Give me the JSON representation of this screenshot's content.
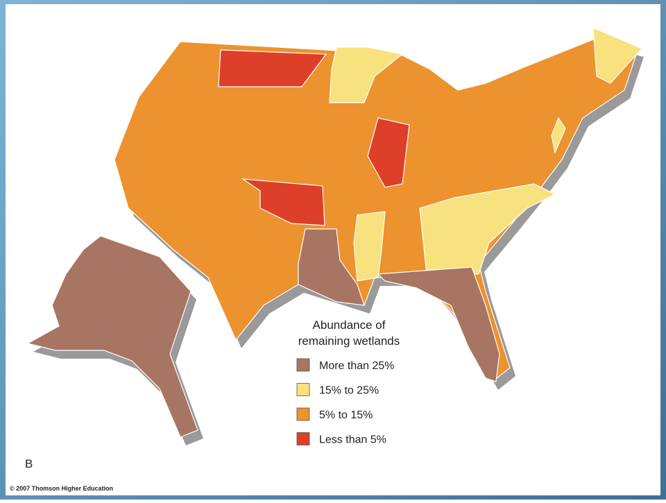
{
  "caption": "B",
  "copyright": "© 2007 Thomson Higher Education",
  "legend": {
    "title": [
      "Abundance of",
      "remaining wetlands"
    ],
    "items": [
      {
        "label": "More than 25%",
        "color": "#a87562"
      },
      {
        "label": "15% to 25%",
        "color": "#f7e27f"
      },
      {
        "label": "5% to 15%",
        "color": "#ec922f"
      },
      {
        "label": "Less than 5%",
        "color": "#dd3f28"
      }
    ]
  }
}
